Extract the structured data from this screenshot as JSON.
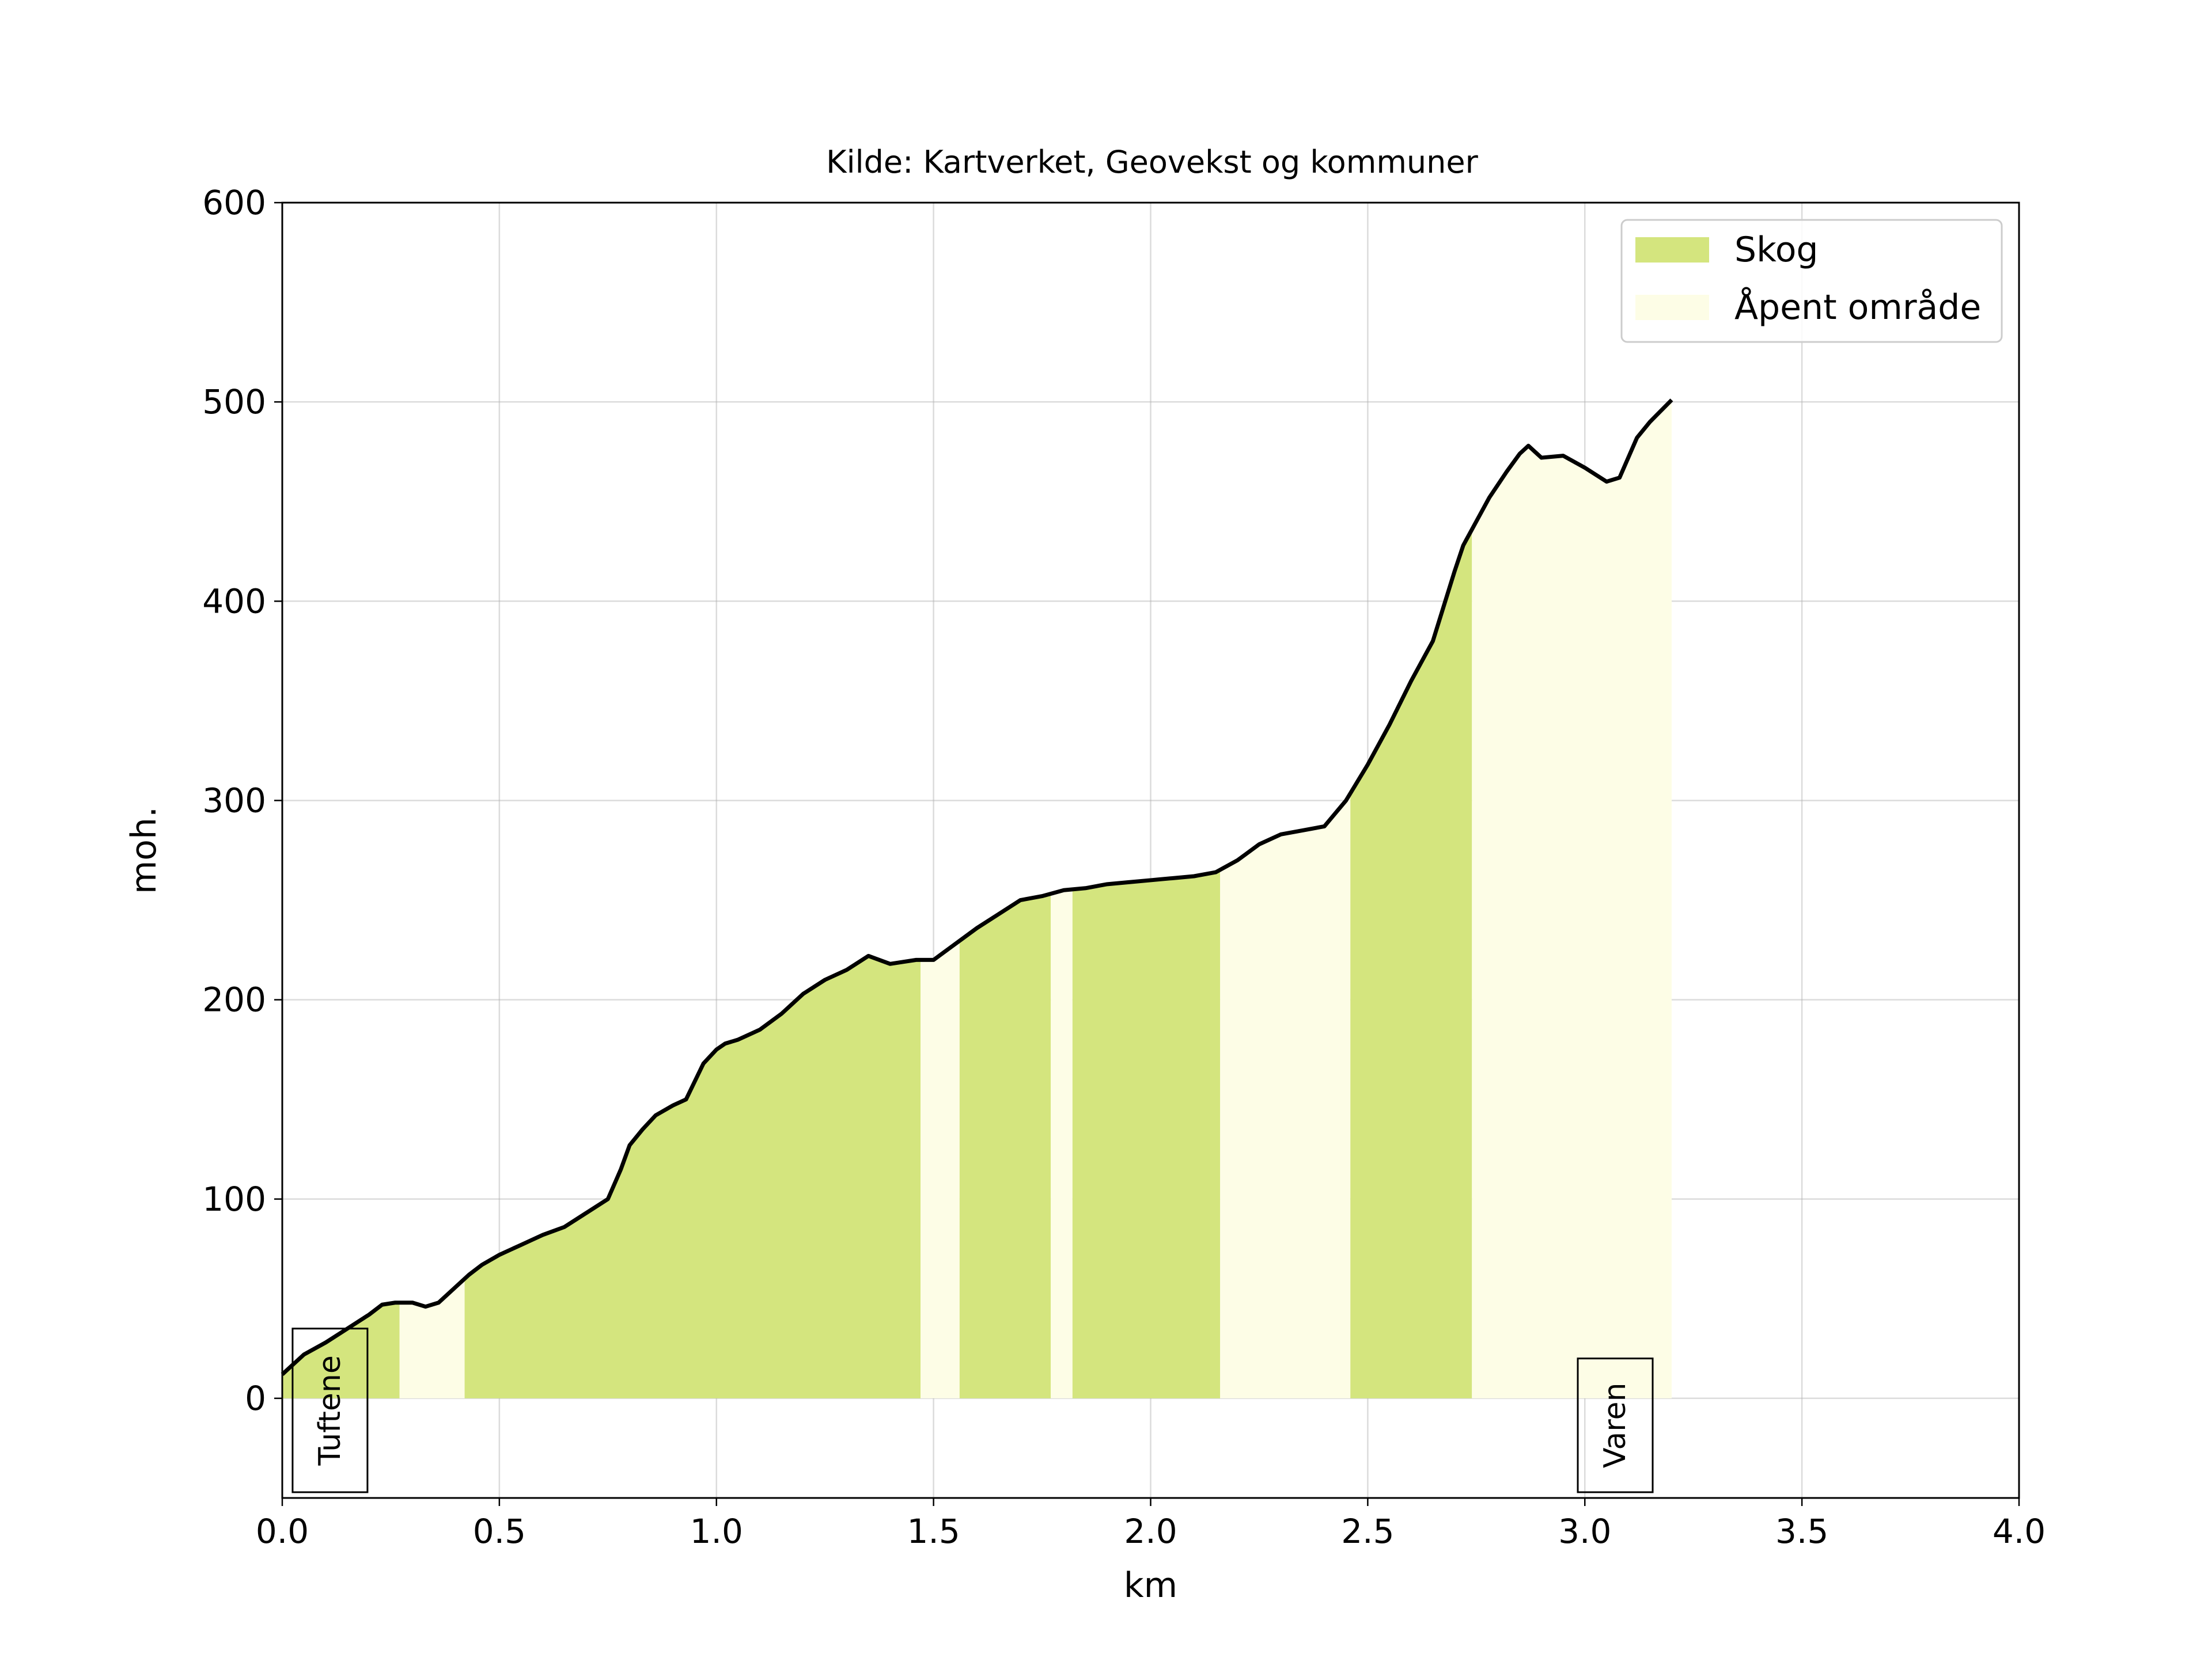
{
  "colors": {
    "forest": "#d4e57e",
    "open": "#fdfde6",
    "line": "#000000"
  },
  "chart_data": {
    "type": "area",
    "title": "Kilde: Kartverket, Geovekst og kommuner",
    "xlabel": "km",
    "ylabel": "moh.",
    "xlim": [
      0,
      4.0
    ],
    "ylim": [
      -50,
      600
    ],
    "grid": true,
    "legend_position": "top-right",
    "x_ticks": [
      "0.0",
      "0.5",
      "1.0",
      "1.5",
      "2.0",
      "2.5",
      "3.0",
      "3.5",
      "4.0"
    ],
    "y_ticks": [
      "0",
      "100",
      "200",
      "300",
      "400",
      "500",
      "600"
    ],
    "legend": [
      {
        "label": "Skog",
        "color": "#d4e57e"
      },
      {
        "label": "Åpent område",
        "color": "#fdfde6"
      }
    ],
    "land_cover": [
      {
        "from": 0.0,
        "to": 0.27,
        "class": "Skog"
      },
      {
        "from": 0.27,
        "to": 0.42,
        "class": "Åpent område"
      },
      {
        "from": 0.42,
        "to": 1.47,
        "class": "Skog"
      },
      {
        "from": 1.47,
        "to": 1.56,
        "class": "Åpent område"
      },
      {
        "from": 1.56,
        "to": 1.77,
        "class": "Skog"
      },
      {
        "from": 1.77,
        "to": 1.82,
        "class": "Åpent område"
      },
      {
        "from": 1.82,
        "to": 2.16,
        "class": "Skog"
      },
      {
        "from": 2.16,
        "to": 2.46,
        "class": "Åpent område"
      },
      {
        "from": 2.46,
        "to": 2.74,
        "class": "Skog"
      },
      {
        "from": 2.74,
        "to": 3.2,
        "class": "Åpent område"
      }
    ],
    "elevation": {
      "x": [
        0.0,
        0.05,
        0.1,
        0.15,
        0.2,
        0.23,
        0.26,
        0.3,
        0.33,
        0.36,
        0.4,
        0.43,
        0.46,
        0.5,
        0.55,
        0.6,
        0.65,
        0.7,
        0.75,
        0.78,
        0.8,
        0.83,
        0.86,
        0.9,
        0.93,
        0.97,
        1.0,
        1.02,
        1.05,
        1.1,
        1.15,
        1.2,
        1.25,
        1.3,
        1.35,
        1.4,
        1.43,
        1.46,
        1.5,
        1.55,
        1.6,
        1.65,
        1.7,
        1.75,
        1.8,
        1.85,
        1.9,
        1.95,
        2.0,
        2.05,
        2.1,
        2.15,
        2.2,
        2.25,
        2.3,
        2.35,
        2.4,
        2.45,
        2.5,
        2.55,
        2.6,
        2.65,
        2.7,
        2.72,
        2.74,
        2.78,
        2.82,
        2.85,
        2.87,
        2.9,
        2.95,
        3.0,
        3.05,
        3.08,
        3.12,
        3.15,
        3.2
      ],
      "y": [
        12,
        22,
        28,
        35,
        42,
        47,
        48,
        48,
        46,
        48,
        56,
        62,
        67,
        72,
        77,
        82,
        86,
        93,
        100,
        115,
        127,
        135,
        142,
        147,
        150,
        168,
        175,
        178,
        180,
        185,
        193,
        203,
        210,
        215,
        222,
        218,
        219,
        220,
        220,
        228,
        236,
        243,
        250,
        252,
        255,
        256,
        258,
        259,
        260,
        261,
        262,
        264,
        270,
        278,
        283,
        285,
        287,
        300,
        318,
        338,
        360,
        380,
        415,
        428,
        436,
        452,
        465,
        474,
        478,
        472,
        473,
        467,
        460,
        462,
        482,
        490,
        501
      ]
    },
    "places": [
      {
        "label": "Tuftene",
        "x": 0.11
      },
      {
        "label": "Varen",
        "x": 3.07
      }
    ]
  }
}
